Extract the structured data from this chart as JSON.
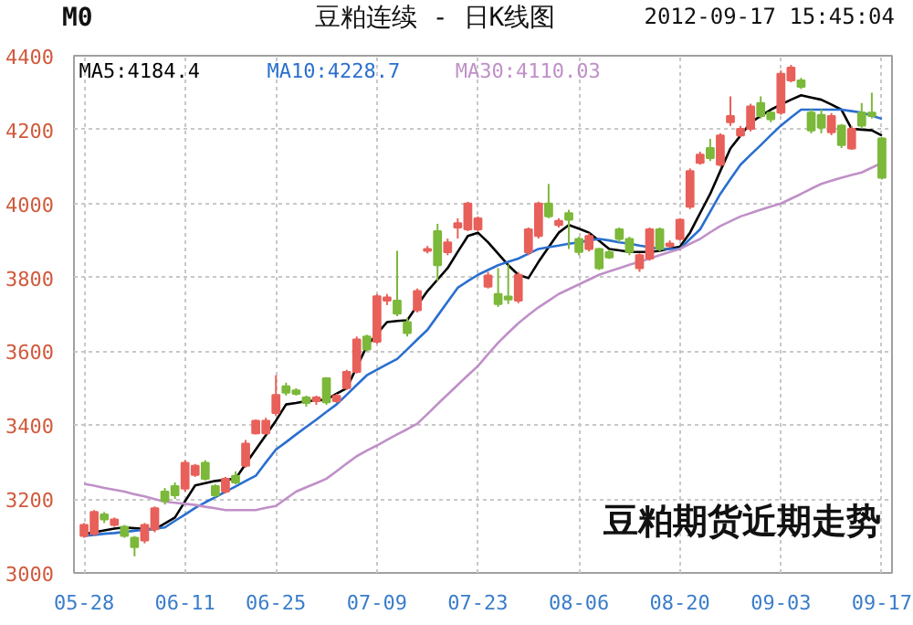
{
  "chart_data": {
    "type": "candlestick",
    "title": "豆粕连续 - 日K线图",
    "annotations": [
      "M0",
      "2012-09-17 15:45:04",
      "豆粕期货近期走势"
    ],
    "categories": [
      "05-28",
      null,
      null,
      null,
      null,
      null,
      null,
      null,
      null,
      null,
      "06-11",
      null,
      null,
      null,
      null,
      null,
      null,
      null,
      null,
      "06-25",
      null,
      null,
      null,
      null,
      null,
      null,
      null,
      null,
      null,
      "07-09",
      null,
      null,
      null,
      null,
      null,
      null,
      null,
      null,
      null,
      "07-23",
      null,
      null,
      null,
      null,
      null,
      null,
      null,
      null,
      null,
      "08-06",
      null,
      null,
      null,
      null,
      null,
      null,
      null,
      null,
      null,
      "08-20",
      null,
      null,
      null,
      null,
      null,
      null,
      null,
      null,
      null,
      "09-03",
      null,
      null,
      null,
      null,
      null,
      null,
      null,
      null,
      null,
      "09-17"
    ],
    "ohlc": [
      [
        3100,
        3135,
        3095,
        3130
      ],
      [
        3106,
        3170,
        3100,
        3165
      ],
      [
        3158,
        3165,
        3135,
        3145
      ],
      [
        3130,
        3150,
        3125,
        3145
      ],
      [
        3125,
        3130,
        3095,
        3100
      ],
      [
        3095,
        3100,
        3045,
        3070
      ],
      [
        3088,
        3135,
        3080,
        3130
      ],
      [
        3118,
        3180,
        3110,
        3175
      ],
      [
        3220,
        3230,
        3185,
        3195
      ],
      [
        3235,
        3245,
        3200,
        3210
      ],
      [
        3228,
        3305,
        3220,
        3298
      ],
      [
        3265,
        3295,
        3260,
        3290
      ],
      [
        3298,
        3305,
        3250,
        3255
      ],
      [
        3235,
        3240,
        3205,
        3210
      ],
      [
        3220,
        3260,
        3215,
        3255
      ],
      [
        3263,
        3275,
        3240,
        3245
      ],
      [
        3290,
        3360,
        3285,
        3350
      ],
      [
        3378,
        3415,
        3375,
        3412
      ],
      [
        3378,
        3420,
        3375,
        3412
      ],
      [
        3433,
        3535,
        3425,
        3482
      ],
      [
        3505,
        3515,
        3480,
        3488
      ],
      [
        3494,
        3500,
        3480,
        3485
      ],
      [
        3475,
        3480,
        3450,
        3460
      ],
      [
        3465,
        3480,
        3455,
        3475
      ],
      [
        3527,
        3530,
        3455,
        3462
      ],
      [
        3465,
        3485,
        3460,
        3479
      ],
      [
        3500,
        3550,
        3495,
        3544
      ],
      [
        3544,
        3640,
        3540,
        3632
      ],
      [
        3640,
        3645,
        3600,
        3605
      ],
      [
        3626,
        3755,
        3620,
        3749
      ],
      [
        3737,
        3755,
        3725,
        3746
      ],
      [
        3737,
        3872,
        3695,
        3702
      ],
      [
        3679,
        3690,
        3640,
        3649
      ],
      [
        3711,
        3770,
        3705,
        3763
      ],
      [
        3872,
        3885,
        3865,
        3877
      ],
      [
        3925,
        3945,
        3790,
        3833
      ],
      [
        3868,
        3905,
        3860,
        3895
      ],
      [
        3935,
        3960,
        3905,
        3947
      ],
      [
        3930,
        4005,
        3925,
        4000
      ],
      [
        3930,
        3965,
        3925,
        3960
      ],
      [
        3775,
        3815,
        3770,
        3805
      ],
      [
        3755,
        3825,
        3720,
        3728
      ],
      [
        3748,
        3835,
        3728,
        3740
      ],
      [
        3737,
        3815,
        3730,
        3807
      ],
      [
        3868,
        3935,
        3860,
        3930
      ],
      [
        3912,
        4005,
        3905,
        4000
      ],
      [
        4000,
        4053,
        3960,
        3965
      ],
      [
        3942,
        3960,
        3935,
        3953
      ],
      [
        3974,
        3983,
        3877,
        3956
      ],
      [
        3904,
        3910,
        3860,
        3869
      ],
      [
        3877,
        3920,
        3870,
        3912
      ],
      [
        3877,
        3880,
        3820,
        3825
      ],
      [
        3868,
        3875,
        3850,
        3854
      ],
      [
        3930,
        3935,
        3895,
        3904
      ],
      [
        3904,
        3910,
        3860,
        3869
      ],
      [
        3825,
        3865,
        3815,
        3860
      ],
      [
        3851,
        3935,
        3845,
        3930
      ],
      [
        3930,
        3935,
        3870,
        3877
      ],
      [
        3885,
        3900,
        3880,
        3892
      ],
      [
        3904,
        3960,
        3900,
        3956
      ],
      [
        3991,
        4095,
        3985,
        4088
      ],
      [
        4110,
        4140,
        4105,
        4132
      ],
      [
        4150,
        4175,
        4115,
        4123
      ],
      [
        4105,
        4190,
        4100,
        4184
      ],
      [
        4220,
        4290,
        4210,
        4237
      ],
      [
        4184,
        4210,
        4180,
        4202
      ],
      [
        4202,
        4270,
        4195,
        4263
      ],
      [
        4272,
        4290,
        4230,
        4237
      ],
      [
        4246,
        4250,
        4220,
        4228
      ],
      [
        4246,
        4360,
        4240,
        4351
      ],
      [
        4333,
        4375,
        4328,
        4368
      ],
      [
        4333,
        4340,
        4310,
        4316
      ],
      [
        4246,
        4255,
        4190,
        4198
      ],
      [
        4240,
        4255,
        4190,
        4205
      ],
      [
        4193,
        4245,
        4185,
        4237
      ],
      [
        4211,
        4215,
        4150,
        4158
      ],
      [
        4149,
        4210,
        4145,
        4202
      ],
      [
        4246,
        4272,
        4205,
        4211
      ],
      [
        4246,
        4300,
        4230,
        4237
      ],
      [
        4176,
        4180,
        4065,
        4070
      ]
    ],
    "colors": [
      "#e8605a",
      "#e8605a",
      "#7cb83a",
      "#e8605a",
      "#7cb83a",
      "#7cb83a",
      "#e8605a",
      "#e8605a",
      "#7cb83a",
      "#7cb83a",
      "#e8605a",
      "#e8605a",
      "#7cb83a",
      "#7cb83a",
      "#e8605a",
      "#7cb83a",
      "#e8605a",
      "#e8605a",
      "#e8605a",
      "#e8605a",
      "#7cb83a",
      "#7cb83a",
      "#7cb83a",
      "#e8605a",
      "#7cb83a",
      "#e8605a",
      "#e8605a",
      "#e8605a",
      "#7cb83a",
      "#e8605a",
      "#e8605a",
      "#7cb83a",
      "#7cb83a",
      "#e8605a",
      "#e8605a",
      "#7cb83a",
      "#e8605a",
      "#e8605a",
      "#e8605a",
      "#e8605a",
      "#e8605a",
      "#7cb83a",
      "#7cb83a",
      "#e8605a",
      "#e8605a",
      "#e8605a",
      "#7cb83a",
      "#e8605a",
      "#7cb83a",
      "#7cb83a",
      "#e8605a",
      "#7cb83a",
      "#7cb83a",
      "#7cb83a",
      "#7cb83a",
      "#e8605a",
      "#e8605a",
      "#7cb83a",
      "#e8605a",
      "#e8605a",
      "#e8605a",
      "#e8605a",
      "#7cb83a",
      "#e8605a",
      "#e8605a",
      "#e8605a",
      "#e8605a",
      "#7cb83a",
      "#7cb83a",
      "#e8605a",
      "#e8605a",
      "#7cb83a",
      "#7cb83a",
      "#7cb83a",
      "#e8605a",
      "#7cb83a",
      "#e8605a",
      "#7cb83a",
      "#7cb83a",
      "#7cb83a"
    ],
    "series": [
      {
        "name": "MA5:4184.4",
        "type": "line",
        "color": "#000000",
        "values": [
          3105,
          3110,
          3115,
          3120,
          3123,
          3121,
          3119,
          3118,
          3134,
          3150,
          3194,
          3237,
          3243,
          3249,
          3252,
          3255,
          3295,
          3334,
          3373,
          3412,
          3456,
          3460,
          3465,
          3467,
          3469,
          3485,
          3500,
          3557,
          3614,
          3647,
          3679,
          3682,
          3684,
          3724,
          3763,
          3794,
          3825,
          3869,
          3912,
          3921,
          3895,
          3864,
          3833,
          3807,
          3798,
          3842,
          3882,
          3921,
          3942,
          3932,
          3921,
          3899,
          3877,
          3873,
          3869,
          3869,
          3869,
          3872,
          3878,
          3883,
          3921,
          3974,
          4026,
          4088,
          4149,
          4184,
          4219,
          4237,
          4254,
          4268,
          4281,
          4293,
          4287,
          4281,
          4268,
          4254,
          4202,
          4200,
          4198,
          4184
        ]
      },
      {
        "name": "MA10:4228.7",
        "type": "line",
        "color": "#2a6fcf",
        "values": [
          3100,
          3103,
          3106,
          3108,
          3111,
          3114,
          3117,
          3120,
          3123,
          3141,
          3158,
          3176,
          3191,
          3205,
          3220,
          3234,
          3249,
          3263,
          3299,
          3334,
          3354,
          3375,
          3395,
          3415,
          3436,
          3456,
          3482,
          3509,
          3535,
          3550,
          3565,
          3579,
          3605,
          3632,
          3658,
          3696,
          3734,
          3772,
          3790,
          3807,
          3820,
          3833,
          3842,
          3851,
          3864,
          3877,
          3882,
          3886,
          3891,
          3895,
          3900,
          3904,
          3900,
          3895,
          3891,
          3886,
          3882,
          3877,
          3877,
          3877,
          3904,
          3930,
          3978,
          4026,
          4066,
          4105,
          4132,
          4158,
          4185,
          4211,
          4233,
          4254,
          4254,
          4254,
          4254,
          4254,
          4250,
          4246,
          4238,
          4229
        ]
      },
      {
        "name": "MA30:4110.03",
        "type": "line",
        "color": "#c090c8",
        "values": [
          3241,
          3236,
          3230,
          3225,
          3220,
          3213,
          3207,
          3200,
          3193,
          3190,
          3187,
          3184,
          3179,
          3175,
          3170,
          3170,
          3170,
          3170,
          3176,
          3181,
          3201,
          3220,
          3232,
          3243,
          3255,
          3275,
          3296,
          3316,
          3331,
          3345,
          3360,
          3375,
          3389,
          3404,
          3430,
          3457,
          3483,
          3509,
          3535,
          3560,
          3592,
          3623,
          3650,
          3676,
          3698,
          3719,
          3737,
          3755,
          3768,
          3781,
          3794,
          3807,
          3816,
          3825,
          3834,
          3842,
          3851,
          3860,
          3869,
          3877,
          3891,
          3904,
          3922,
          3939,
          3952,
          3965,
          3974,
          3983,
          3992,
          4000,
          4013,
          4026,
          4040,
          4053,
          4062,
          4070,
          4077,
          4084,
          4097,
          4110
        ]
      }
    ],
    "ylim": [
      3000,
      4400
    ],
    "yticks": [
      3000,
      3200,
      3400,
      3600,
      3800,
      4000,
      4200,
      4400
    ],
    "grid": true,
    "legend": "top left"
  }
}
